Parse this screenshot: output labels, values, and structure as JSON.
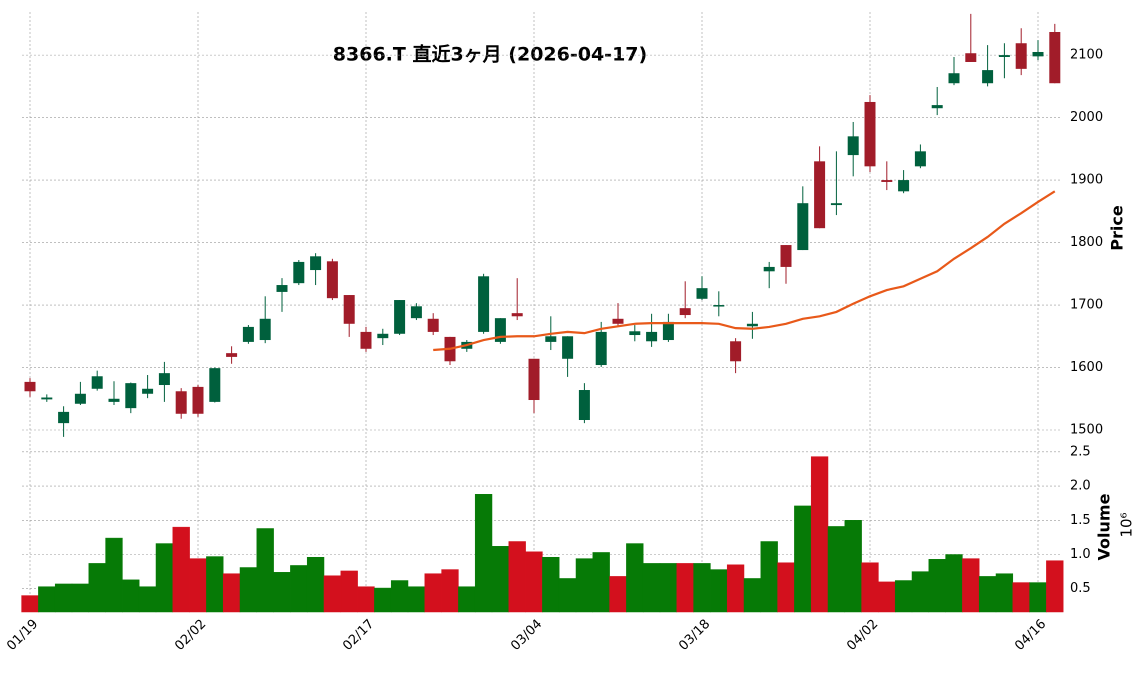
{
  "chart_data": {
    "type": "candlestick",
    "title": "8366.T 直近3ヶ月 (2026-04-17)",
    "categories": [
      "01/19",
      null,
      null,
      null,
      null,
      null,
      null,
      null,
      null,
      null,
      "02/02",
      null,
      null,
      null,
      null,
      null,
      null,
      null,
      null,
      null,
      "02/17",
      null,
      null,
      null,
      null,
      null,
      null,
      null,
      null,
      null,
      "03/04",
      null,
      null,
      null,
      null,
      null,
      null,
      null,
      null,
      null,
      "03/18",
      null,
      null,
      null,
      null,
      null,
      null,
      null,
      null,
      null,
      "04/02",
      null,
      null,
      null,
      null,
      null,
      null,
      null,
      null,
      null,
      "04/16",
      null
    ],
    "open": [
      1577,
      1549,
      1511,
      1542,
      1566,
      1545,
      1535,
      1558,
      1572,
      1562,
      1569,
      1545,
      1623,
      1641,
      1644,
      1721,
      1735,
      1756,
      1770,
      1716,
      1657,
      1647,
      1654,
      1679,
      1678,
      1649,
      1630,
      1657,
      1641,
      1687,
      1614,
      1641,
      1614,
      1516,
      1604,
      1678,
      1652,
      1642,
      1644,
      1695,
      1710,
      1698,
      1642,
      1666,
      1754,
      1796,
      1788,
      1930,
      1860,
      1940,
      2025,
      1900,
      1882,
      1922,
      2015,
      2055,
      2103,
      2055,
      2097,
      2119,
      2098,
      2137
    ],
    "high": [
      1583,
      1557,
      1538,
      1577,
      1595,
      1578,
      1576,
      1588,
      1609,
      1567,
      1572,
      1600,
      1634,
      1668,
      1714,
      1743,
      1772,
      1783,
      1774,
      1716,
      1665,
      1662,
      1708,
      1703,
      1687,
      1649,
      1644,
      1750,
      1679,
      1743,
      1614,
      1682,
      1650,
      1575,
      1673,
      1703,
      1668,
      1686,
      1686,
      1738,
      1746,
      1722,
      1647,
      1689,
      1769,
      1796,
      1890,
      1954,
      1946,
      1993,
      2036,
      1930,
      1916,
      1957,
      2049,
      2097,
      2166,
      2116,
      2119,
      2143,
      2124,
      2150
    ],
    "low": [
      1553,
      1545,
      1489,
      1540,
      1563,
      1540,
      1527,
      1551,
      1545,
      1518,
      1521,
      1544,
      1606,
      1638,
      1639,
      1689,
      1732,
      1732,
      1708,
      1649,
      1625,
      1636,
      1652,
      1676,
      1652,
      1604,
      1625,
      1654,
      1638,
      1676,
      1527,
      1628,
      1585,
      1511,
      1601,
      1665,
      1642,
      1633,
      1641,
      1679,
      1708,
      1682,
      1591,
      1646,
      1727,
      1734,
      1788,
      1823,
      1844,
      1906,
      1913,
      1884,
      1879,
      1919,
      2004,
      2052,
      2089,
      2050,
      2063,
      2068,
      2092,
      2055
    ],
    "close": [
      1562,
      1552,
      1529,
      1558,
      1586,
      1550,
      1575,
      1566,
      1591,
      1526,
      1526,
      1599,
      1617,
      1665,
      1678,
      1732,
      1769,
      1778,
      1711,
      1670,
      1630,
      1654,
      1708,
      1698,
      1657,
      1610,
      1641,
      1746,
      1679,
      1682,
      1548,
      1650,
      1650,
      1564,
      1657,
      1670,
      1658,
      1657,
      1673,
      1684,
      1727,
      1700,
      1610,
      1670,
      1761,
      1761,
      1863,
      1823,
      1863,
      1970,
      1922,
      1897,
      1900,
      1946,
      2020,
      2071,
      2089,
      2076,
      2100,
      2078,
      2105,
      2055
    ],
    "ma": [
      null,
      null,
      null,
      null,
      null,
      null,
      null,
      null,
      null,
      null,
      null,
      null,
      null,
      null,
      null,
      null,
      null,
      null,
      null,
      null,
      null,
      null,
      null,
      null,
      1628,
      1630,
      1636,
      1644,
      1649,
      1650,
      1650,
      1654,
      1657,
      1655,
      1662,
      1666,
      1670,
      1671,
      1671,
      1671,
      1671,
      1670,
      1663,
      1662,
      1665,
      1670,
      1678,
      1682,
      1689,
      1702,
      1714,
      1724,
      1730,
      1742,
      1754,
      1774,
      1791,
      1809,
      1830,
      1847,
      1865,
      1882
    ],
    "volume": [
      0.4,
      0.53,
      0.57,
      0.57,
      0.87,
      1.24,
      0.63,
      0.53,
      1.16,
      1.4,
      0.94,
      0.97,
      0.72,
      0.81,
      1.38,
      0.74,
      0.84,
      0.96,
      0.69,
      0.76,
      0.53,
      0.51,
      0.62,
      0.53,
      0.72,
      0.78,
      0.53,
      1.88,
      1.12,
      1.19,
      1.04,
      0.96,
      0.65,
      0.94,
      1.03,
      0.68,
      1.16,
      0.87,
      0.87,
      0.87,
      0.87,
      0.78,
      0.85,
      0.65,
      1.19,
      0.88,
      1.71,
      2.43,
      1.41,
      1.5,
      0.88,
      0.6,
      0.62,
      0.75,
      0.93,
      1.0,
      0.94,
      0.68,
      0.72,
      0.59,
      0.59,
      0.91
    ],
    "up_color": "#00603d",
    "down_color": "#a11c29",
    "ma_color": "#e8591a",
    "volume_up_color": "#067a06",
    "volume_down_color": "#d3101d",
    "ylabel": "Price",
    "ylim": [
      1476,
      2169
    ],
    "yticks": [
      1500,
      1600,
      1700,
      1800,
      1900,
      2000,
      2100
    ],
    "volume_label": "Volume",
    "volume_scale": "10⁶",
    "volume_ylim": [
      0.16,
      2.6
    ],
    "volume_yticks": [
      0.5,
      {
        "value": 1.0,
        "label": "1.0"
      },
      1.5,
      {
        "value": 2.0,
        "label": "2.0"
      },
      2.5
    ],
    "grid": true
  }
}
